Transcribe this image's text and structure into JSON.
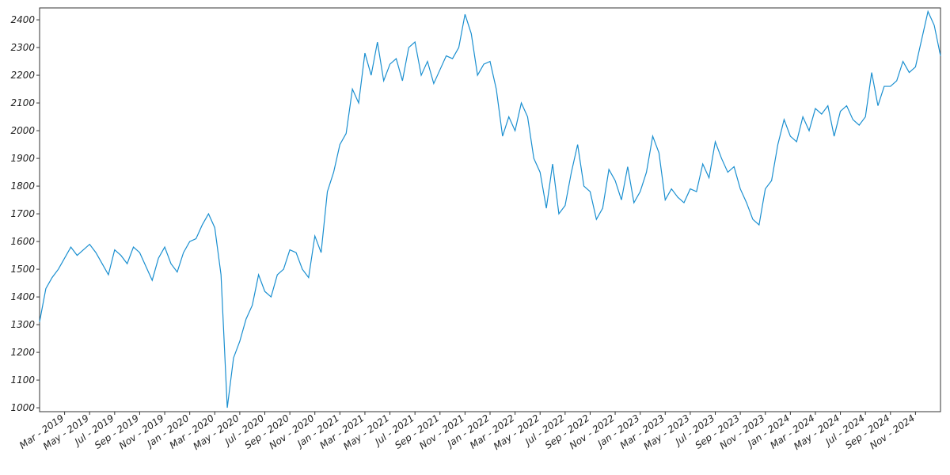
{
  "chart_data": {
    "type": "line",
    "categories": [
      null,
      null,
      null,
      null,
      "Mar - 2019",
      null,
      null,
      null,
      "May - 2019",
      null,
      null,
      null,
      "Jul - 2019",
      null,
      null,
      null,
      "Sep - 2019",
      null,
      null,
      null,
      "Nov - 2019",
      null,
      null,
      null,
      "Jan - 2020",
      null,
      null,
      null,
      "Mar - 2020",
      null,
      null,
      null,
      "May - 2020",
      null,
      null,
      null,
      "Jul - 2020",
      null,
      null,
      null,
      "Sep - 2020",
      null,
      null,
      null,
      "Nov - 2020",
      null,
      null,
      null,
      "Jan - 2021",
      null,
      null,
      null,
      "Mar - 2021",
      null,
      null,
      null,
      "May - 2021",
      null,
      null,
      null,
      "Jul - 2021",
      null,
      null,
      null,
      "Sep - 2021",
      null,
      null,
      null,
      "Nov - 2021",
      null,
      null,
      null,
      "Jan - 2022",
      null,
      null,
      null,
      "Mar - 2022",
      null,
      null,
      null,
      "May - 2022",
      null,
      null,
      null,
      "Jul - 2022",
      null,
      null,
      null,
      "Sep - 2022",
      null,
      null,
      null,
      "Nov - 2022",
      null,
      null,
      null,
      "Jan - 2023",
      null,
      null,
      null,
      "Mar - 2023",
      null,
      null,
      null,
      "May - 2023",
      null,
      null,
      null,
      "Jul - 2023",
      null,
      null,
      null,
      "Sep - 2023",
      null,
      null,
      null,
      "Nov - 2023",
      null,
      null,
      null,
      "Jan - 2024",
      null,
      null,
      null,
      "Mar - 2024",
      null,
      null,
      null,
      "May - 2024",
      null,
      null,
      null,
      "Jul - 2024",
      null,
      null,
      null,
      "Sep - 2024",
      null,
      null,
      null,
      "Nov - 2024",
      null,
      null,
      null,
      null
    ],
    "values": [
      1310,
      1430,
      1470,
      1500,
      1540,
      1580,
      1550,
      1570,
      1590,
      1560,
      1520,
      1480,
      1570,
      1550,
      1520,
      1580,
      1560,
      1510,
      1460,
      1540,
      1580,
      1520,
      1490,
      1560,
      1600,
      1610,
      1660,
      1700,
      1650,
      1480,
      1000,
      1180,
      1240,
      1320,
      1370,
      1480,
      1420,
      1400,
      1480,
      1500,
      1570,
      1560,
      1500,
      1470,
      1620,
      1560,
      1780,
      1850,
      1950,
      1990,
      2150,
      2100,
      2280,
      2200,
      2320,
      2180,
      2240,
      2260,
      2180,
      2300,
      2320,
      2200,
      2250,
      2170,
      2220,
      2270,
      2260,
      2300,
      2420,
      2350,
      2200,
      2240,
      2250,
      2150,
      1980,
      2050,
      2000,
      2100,
      2050,
      1900,
      1850,
      1720,
      1880,
      1700,
      1730,
      1850,
      1950,
      1800,
      1780,
      1680,
      1720,
      1860,
      1820,
      1750,
      1870,
      1740,
      1780,
      1850,
      1980,
      1920,
      1750,
      1790,
      1760,
      1740,
      1790,
      1780,
      1880,
      1830,
      1960,
      1900,
      1850,
      1870,
      1790,
      1740,
      1680,
      1660,
      1790,
      1820,
      1950,
      2040,
      1980,
      1960,
      2050,
      2000,
      2080,
      2060,
      2090,
      1980,
      2070,
      2090,
      2040,
      2020,
      2050,
      2210,
      2090,
      2160,
      2160,
      2180,
      2250,
      2210,
      2230,
      2330,
      2430,
      2380,
      2270
    ],
    "color": "#1a8fd0",
    "ylim": [
      986,
      2443
    ],
    "yticks": [
      1000,
      1100,
      1200,
      1300,
      1400,
      1500,
      1600,
      1700,
      1800,
      1900,
      2000,
      2100,
      2200,
      2300,
      2400
    ]
  }
}
